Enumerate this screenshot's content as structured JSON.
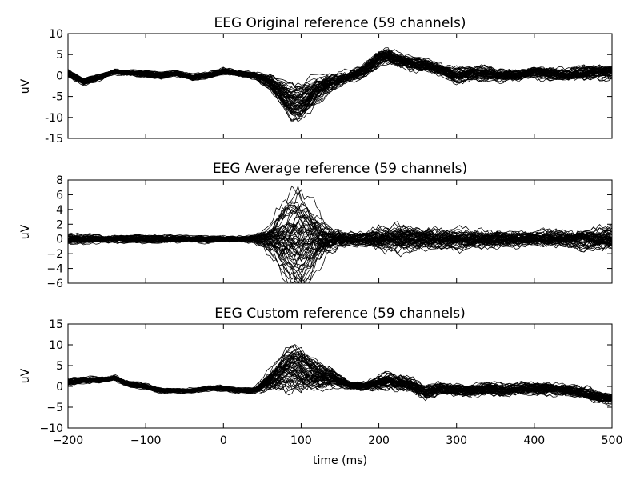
{
  "chart_data": [
    {
      "type": "line",
      "title": "EEG Original reference (59 channels)",
      "ylabel": "uV",
      "xlabel": "",
      "xlim": [
        -200,
        500
      ],
      "ylim": [
        -15,
        10
      ],
      "xticks": [
        "-200",
        "-100",
        "0",
        "100",
        "200",
        "300",
        "400",
        "500"
      ],
      "show_xtick_labels": false,
      "yticks": [
        "10",
        "5",
        "0",
        "-5",
        "-10",
        "-15"
      ],
      "yticks_values": [
        10,
        5,
        0,
        -5,
        -10,
        -15
      ],
      "n_series": 59,
      "series_color": "#000000",
      "waveform_anchors": {
        "t": [
          -200,
          -180,
          -160,
          -140,
          -120,
          -100,
          -80,
          -60,
          -40,
          -20,
          0,
          20,
          40,
          60,
          80,
          90,
          100,
          120,
          140,
          160,
          180,
          200,
          210,
          220,
          240,
          260,
          280,
          300,
          320,
          340,
          360,
          380,
          400,
          420,
          440,
          460,
          480,
          500
        ],
        "mean": [
          0.5,
          -1.5,
          -0.5,
          1,
          0.5,
          0.5,
          0,
          0.5,
          -0.5,
          0,
          1,
          0.5,
          0,
          -1.5,
          -5,
          -6.5,
          -6.5,
          -3.5,
          -1.5,
          -0.5,
          1,
          4,
          5,
          4,
          3,
          2.5,
          1.5,
          0,
          0.5,
          0.5,
          0,
          0,
          1,
          0.5,
          0,
          0.5,
          1,
          1
        ],
        "spread": [
          1.2,
          1.2,
          1.2,
          1.2,
          1.2,
          1.2,
          1.2,
          1.2,
          1.2,
          1.2,
          1.2,
          1.2,
          1.5,
          2.5,
          3.5,
          4.0,
          4.0,
          3.5,
          3.0,
          2.5,
          2.5,
          3.0,
          3.0,
          3.0,
          2.8,
          2.5,
          2.5,
          2.8,
          2.5,
          2.5,
          2.2,
          2.2,
          2.2,
          2.5,
          2.5,
          2.5,
          2.5,
          2.5
        ]
      }
    },
    {
      "type": "line",
      "title": "EEG Average reference (59 channels)",
      "ylabel": "uV",
      "xlabel": "",
      "xlim": [
        -200,
        500
      ],
      "ylim": [
        -6,
        8
      ],
      "xticks": [
        "-200",
        "-100",
        "0",
        "100",
        "200",
        "300",
        "400",
        "500"
      ],
      "show_xtick_labels": false,
      "yticks": [
        "8",
        "6",
        "4",
        "2",
        "0",
        "−2",
        "−4",
        "−6"
      ],
      "yticks_values": [
        8,
        6,
        4,
        2,
        0,
        -2,
        -4,
        -6
      ],
      "n_series": 59,
      "series_color": "#000000",
      "waveform_anchors": {
        "t": [
          -200,
          -180,
          -160,
          -140,
          -120,
          -100,
          -80,
          -60,
          -40,
          -20,
          0,
          20,
          40,
          60,
          80,
          90,
          100,
          120,
          140,
          160,
          180,
          200,
          210,
          220,
          240,
          260,
          280,
          300,
          320,
          340,
          360,
          380,
          400,
          420,
          440,
          460,
          480,
          500
        ],
        "mean": [
          0,
          0,
          0,
          0,
          0,
          0,
          0,
          0,
          0,
          0,
          0,
          0,
          0,
          0,
          0,
          0,
          0,
          0,
          0,
          0,
          0,
          0,
          0,
          0,
          0,
          0,
          0,
          0,
          0,
          0,
          0,
          0,
          0,
          0,
          0,
          0,
          0,
          0
        ],
        "spread": [
          0.9,
          0.9,
          0.9,
          0.9,
          0.9,
          0.8,
          0.8,
          0.8,
          0.7,
          0.7,
          0.6,
          0.6,
          0.8,
          2.5,
          4.0,
          4.5,
          4.5,
          3.5,
          2.5,
          1.2,
          1.5,
          2.5,
          2.8,
          2.8,
          2.5,
          2.2,
          2.0,
          2.0,
          2.0,
          2.0,
          1.8,
          1.6,
          1.4,
          1.6,
          1.8,
          2.0,
          2.2,
          2.5
        ]
      }
    },
    {
      "type": "line",
      "title": "EEG Custom reference (59 channels)",
      "ylabel": "uV",
      "xlabel": "time (ms)",
      "xlim": [
        -200,
        500
      ],
      "ylim": [
        -10,
        15
      ],
      "xticks": [
        "−200",
        "−100",
        "0",
        "100",
        "200",
        "300",
        "400",
        "500"
      ],
      "xticks_values": [
        -200,
        -100,
        0,
        100,
        200,
        300,
        400,
        500
      ],
      "show_xtick_labels": true,
      "yticks": [
        "15",
        "10",
        "5",
        "0",
        "−5",
        "−10"
      ],
      "yticks_values": [
        15,
        10,
        5,
        0,
        -5,
        -10
      ],
      "n_series": 59,
      "series_color": "#000000",
      "waveform_anchors": {
        "t": [
          -200,
          -180,
          -160,
          -140,
          -120,
          -100,
          -80,
          -60,
          -40,
          -20,
          0,
          20,
          40,
          60,
          80,
          90,
          100,
          120,
          140,
          160,
          180,
          200,
          210,
          220,
          240,
          260,
          280,
          300,
          320,
          340,
          360,
          380,
          400,
          420,
          440,
          460,
          480,
          500
        ],
        "mean": [
          1,
          1.5,
          1.5,
          2,
          0.5,
          0,
          -1,
          -1,
          -1,
          -0.5,
          -0.5,
          -1,
          -1,
          1.5,
          4,
          4.5,
          4,
          2.5,
          2,
          0.5,
          0,
          1,
          1.5,
          1,
          0.5,
          -1.5,
          -0.5,
          -1,
          -1,
          -0.5,
          -1,
          -0.5,
          -0.5,
          -0.5,
          -1,
          -1.5,
          -2.5,
          -3
        ],
        "spread": [
          1.2,
          1.2,
          1.2,
          1.2,
          1.2,
          1.0,
          1.0,
          1.0,
          1.0,
          1.0,
          1.0,
          1.0,
          1.2,
          3.0,
          4.5,
          5.0,
          5.0,
          4.0,
          3.0,
          2.0,
          2.0,
          2.5,
          2.8,
          2.8,
          2.5,
          2.5,
          2.5,
          2.5,
          2.5,
          2.5,
          2.2,
          2.2,
          2.2,
          2.2,
          2.2,
          2.2,
          2.2,
          2.2
        ]
      }
    }
  ]
}
